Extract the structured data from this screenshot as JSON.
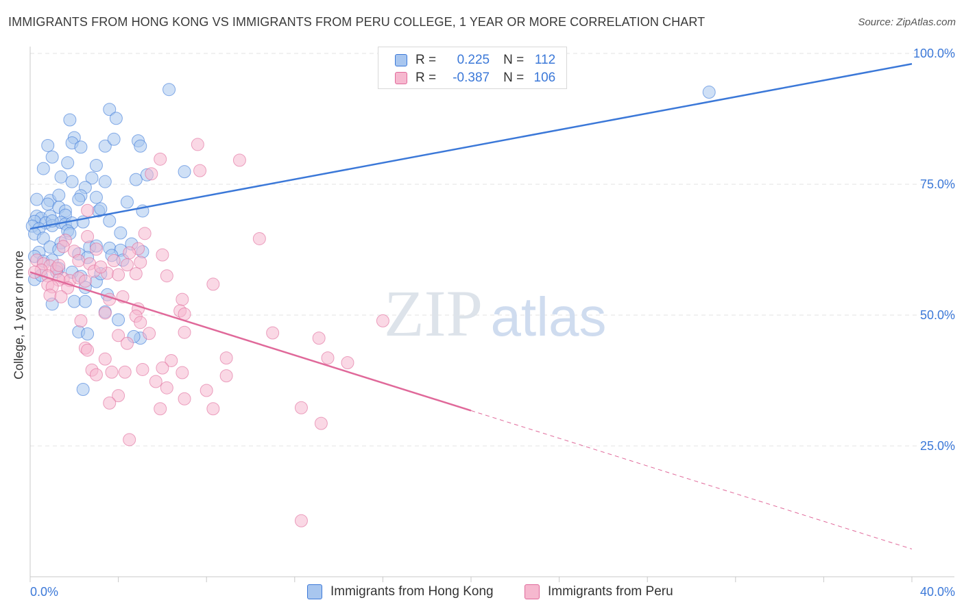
{
  "title": "IMMIGRANTS FROM HONG KONG VS IMMIGRANTS FROM PERU COLLEGE, 1 YEAR OR MORE CORRELATION CHART",
  "source": "Source: ZipAtlas.com",
  "watermark": {
    "zip": "ZIP",
    "atlas": "atlas"
  },
  "stats": {
    "r_label": "R =",
    "n_label": "N =",
    "rows": [
      {
        "series": "Immigrants from Hong Kong",
        "r": "0.225",
        "n": "112"
      },
      {
        "series": "Immigrants from Peru",
        "r": "-0.387",
        "n": "106"
      }
    ]
  },
  "legend": [
    "Immigrants from Hong Kong",
    "Immigrants from Peru"
  ],
  "colors": {
    "blue": "#3b78d8",
    "blue_fill": "#a8c6ef",
    "pink": "#e0699a",
    "pink_fill": "#f6b8cf",
    "grid": "#e3e3e3",
    "axis_text": "#3b78d8"
  },
  "chart_data": {
    "type": "scatter",
    "title": "IMMIGRANTS FROM HONG KONG VS IMMIGRANTS FROM PERU COLLEGE, 1 YEAR OR MORE CORRELATION CHART",
    "xlabel": "",
    "ylabel": "College, 1 year or more",
    "xlim": [
      0,
      40
    ],
    "ylim": [
      0,
      100
    ],
    "x_tick_labels": [
      "0.0%",
      "40.0%"
    ],
    "y_tick_labels": [
      "25.0%",
      "50.0%",
      "75.0%",
      "100.0%"
    ],
    "y_ticks": [
      25,
      50,
      75,
      100
    ],
    "grid": true,
    "legend_position": "bottom",
    "series": [
      {
        "name": "Immigrants from Hong Kong",
        "color": "#3b78d8",
        "trend": {
          "x": [
            0,
            40
          ],
          "y": [
            66.5,
            98.0
          ],
          "dashed_from": null
        },
        "points": [
          [
            6.3,
            93.1
          ],
          [
            3.6,
            89.3
          ],
          [
            3.9,
            87.6
          ],
          [
            1.8,
            87.3
          ],
          [
            30.8,
            92.6
          ],
          [
            2.0,
            83.9
          ],
          [
            1.9,
            82.9
          ],
          [
            2.3,
            82.1
          ],
          [
            3.4,
            82.3
          ],
          [
            3.8,
            83.6
          ],
          [
            4.9,
            83.3
          ],
          [
            5.0,
            82.3
          ],
          [
            0.8,
            82.4
          ],
          [
            1.0,
            80.2
          ],
          [
            1.7,
            79.1
          ],
          [
            3.0,
            78.6
          ],
          [
            0.6,
            78.0
          ],
          [
            2.8,
            76.2
          ],
          [
            4.8,
            75.9
          ],
          [
            7.0,
            77.4
          ],
          [
            5.3,
            76.8
          ],
          [
            1.4,
            76.4
          ],
          [
            1.9,
            75.5
          ],
          [
            3.4,
            75.5
          ],
          [
            2.5,
            74.4
          ],
          [
            2.3,
            72.8
          ],
          [
            3.0,
            72.5
          ],
          [
            0.3,
            72.1
          ],
          [
            0.9,
            71.9
          ],
          [
            1.3,
            72.9
          ],
          [
            2.2,
            72.1
          ],
          [
            4.4,
            71.6
          ],
          [
            0.8,
            71.2
          ],
          [
            1.3,
            70.6
          ],
          [
            1.6,
            69.9
          ],
          [
            3.1,
            69.9
          ],
          [
            5.1,
            69.9
          ],
          [
            0.3,
            68.9
          ],
          [
            0.5,
            68.5
          ],
          [
            0.9,
            68.9
          ],
          [
            1.6,
            69.1
          ],
          [
            0.2,
            67.9
          ],
          [
            0.7,
            67.6
          ],
          [
            1.0,
            67.1
          ],
          [
            1.4,
            67.7
          ],
          [
            1.6,
            67.4
          ],
          [
            1.9,
            67.6
          ],
          [
            3.6,
            68.0
          ],
          [
            2.4,
            67.8
          ],
          [
            0.1,
            67.0
          ],
          [
            0.4,
            66.5
          ],
          [
            0.2,
            65.5
          ],
          [
            1.7,
            66.1
          ],
          [
            1.8,
            65.6
          ],
          [
            4.1,
            65.7
          ],
          [
            0.6,
            64.7
          ],
          [
            1.4,
            63.8
          ],
          [
            0.9,
            63.0
          ],
          [
            0.4,
            62.0
          ],
          [
            1.3,
            62.5
          ],
          [
            2.7,
            63.0
          ],
          [
            3.0,
            63.2
          ],
          [
            3.6,
            62.8
          ],
          [
            4.6,
            63.6
          ],
          [
            4.1,
            62.4
          ],
          [
            5.1,
            62.1
          ],
          [
            0.2,
            61.2
          ],
          [
            0.6,
            60.3
          ],
          [
            1.0,
            60.5
          ],
          [
            2.2,
            61.7
          ],
          [
            2.6,
            61.0
          ],
          [
            3.7,
            61.4
          ],
          [
            1.9,
            58.2
          ],
          [
            2.3,
            57.4
          ],
          [
            1.3,
            58.9
          ],
          [
            3.0,
            56.4
          ],
          [
            2.5,
            55.3
          ],
          [
            0.2,
            56.8
          ],
          [
            3.5,
            53.9
          ],
          [
            2.0,
            52.6
          ],
          [
            2.5,
            52.6
          ],
          [
            3.4,
            50.6
          ],
          [
            1.0,
            52.1
          ],
          [
            4.0,
            49.1
          ],
          [
            2.2,
            46.8
          ],
          [
            2.6,
            46.4
          ],
          [
            5.0,
            45.6
          ],
          [
            4.7,
            45.9
          ],
          [
            2.4,
            35.8
          ],
          [
            4.2,
            60.5
          ],
          [
            0.5,
            57.6
          ],
          [
            1.2,
            58.3
          ],
          [
            3.2,
            57.9
          ],
          [
            1.0,
            68.0
          ],
          [
            3.2,
            70.3
          ]
        ]
      },
      {
        "name": "Immigrants from Peru",
        "color": "#e0699a",
        "trend": {
          "x": [
            0,
            40
          ],
          "y": [
            58.2,
            5.3
          ],
          "dashed_from": 20
        },
        "points": [
          [
            7.6,
            82.6
          ],
          [
            9.5,
            79.6
          ],
          [
            5.9,
            79.8
          ],
          [
            7.7,
            77.6
          ],
          [
            5.5,
            77.0
          ],
          [
            10.4,
            64.6
          ],
          [
            5.2,
            65.6
          ],
          [
            4.9,
            62.7
          ],
          [
            6.0,
            61.5
          ],
          [
            4.5,
            61.9
          ],
          [
            2.6,
            65.0
          ],
          [
            1.6,
            64.3
          ],
          [
            1.5,
            63.1
          ],
          [
            2.0,
            62.2
          ],
          [
            3.0,
            62.6
          ],
          [
            4.4,
            59.6
          ],
          [
            5.0,
            60.1
          ],
          [
            3.8,
            60.4
          ],
          [
            2.2,
            60.4
          ],
          [
            2.7,
            59.8
          ],
          [
            2.9,
            58.4
          ],
          [
            3.5,
            58.0
          ],
          [
            4.0,
            57.7
          ],
          [
            0.3,
            60.5
          ],
          [
            0.6,
            59.8
          ],
          [
            0.9,
            59.4
          ],
          [
            1.2,
            58.9
          ],
          [
            0.5,
            58.6
          ],
          [
            0.2,
            58.2
          ],
          [
            0.8,
            57.5
          ],
          [
            1.5,
            57.0
          ],
          [
            1.8,
            56.6
          ],
          [
            2.2,
            57.1
          ],
          [
            2.5,
            56.5
          ],
          [
            1.3,
            56.7
          ],
          [
            0.8,
            55.8
          ],
          [
            1.0,
            55.4
          ],
          [
            1.7,
            55.2
          ],
          [
            6.2,
            57.5
          ],
          [
            8.3,
            55.9
          ],
          [
            0.9,
            53.8
          ],
          [
            1.4,
            53.5
          ],
          [
            3.6,
            53.0
          ],
          [
            4.2,
            53.5
          ],
          [
            6.9,
            53.0
          ],
          [
            4.9,
            51.2
          ],
          [
            6.8,
            50.8
          ],
          [
            7.0,
            50.2
          ],
          [
            3.4,
            50.4
          ],
          [
            4.8,
            49.8
          ],
          [
            5.0,
            48.6
          ],
          [
            2.3,
            48.9
          ],
          [
            16.0,
            48.9
          ],
          [
            7.0,
            46.7
          ],
          [
            11.0,
            46.6
          ],
          [
            13.1,
            45.6
          ],
          [
            4.0,
            46.1
          ],
          [
            4.4,
            44.6
          ],
          [
            5.4,
            46.5
          ],
          [
            2.5,
            43.7
          ],
          [
            2.6,
            43.3
          ],
          [
            3.4,
            41.6
          ],
          [
            8.9,
            41.8
          ],
          [
            6.4,
            41.3
          ],
          [
            13.5,
            41.8
          ],
          [
            14.4,
            40.9
          ],
          [
            2.8,
            39.5
          ],
          [
            3.7,
            39.1
          ],
          [
            4.3,
            39.1
          ],
          [
            5.1,
            39.6
          ],
          [
            6.0,
            39.9
          ],
          [
            6.9,
            39.0
          ],
          [
            8.9,
            38.4
          ],
          [
            3.0,
            38.6
          ],
          [
            5.7,
            37.3
          ],
          [
            6.2,
            36.1
          ],
          [
            8.0,
            35.6
          ],
          [
            4.0,
            34.6
          ],
          [
            7.0,
            34.0
          ],
          [
            3.6,
            33.2
          ],
          [
            8.3,
            32.1
          ],
          [
            5.9,
            32.1
          ],
          [
            12.3,
            32.3
          ],
          [
            13.2,
            29.3
          ],
          [
            4.5,
            26.2
          ],
          [
            12.3,
            10.7
          ],
          [
            2.6,
            70.0
          ],
          [
            1.3,
            59.5
          ],
          [
            3.2,
            59.2
          ],
          [
            4.8,
            57.9
          ]
        ]
      }
    ]
  }
}
